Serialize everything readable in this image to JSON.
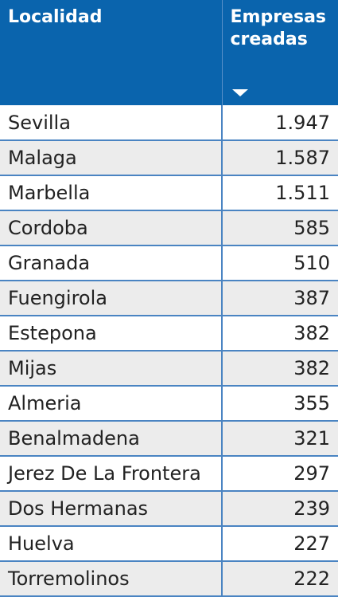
{
  "table": {
    "headers": {
      "col1": "Localidad",
      "col2": "Empresas\ncreadas"
    },
    "sort_icon": "caret-down-icon",
    "colors": {
      "header_bg": "#0a64ad",
      "header_text": "#ffffff",
      "row_alt": "#ececec",
      "grid": "#4a84c2"
    },
    "rows": [
      {
        "localidad": "Sevilla",
        "empresas": "1.947"
      },
      {
        "localidad": "Malaga",
        "empresas": "1.587"
      },
      {
        "localidad": "Marbella",
        "empresas": "1.511"
      },
      {
        "localidad": "Cordoba",
        "empresas": "585"
      },
      {
        "localidad": "Granada",
        "empresas": "510"
      },
      {
        "localidad": "Fuengirola",
        "empresas": "387"
      },
      {
        "localidad": "Estepona",
        "empresas": "382"
      },
      {
        "localidad": "Mijas",
        "empresas": "382"
      },
      {
        "localidad": "Almeria",
        "empresas": "355"
      },
      {
        "localidad": "Benalmadena",
        "empresas": "321"
      },
      {
        "localidad": "Jerez De La Frontera",
        "empresas": "297"
      },
      {
        "localidad": "Dos Hermanas",
        "empresas": "239"
      },
      {
        "localidad": "Huelva",
        "empresas": "227"
      },
      {
        "localidad": "Torremolinos",
        "empresas": "222"
      }
    ]
  }
}
